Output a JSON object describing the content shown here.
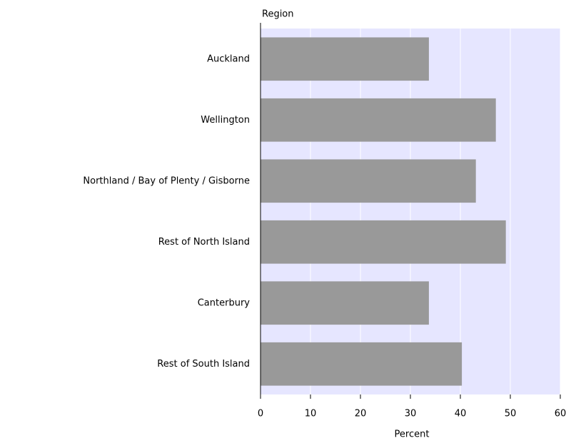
{
  "chart_data": {
    "type": "bar",
    "orientation": "horizontal",
    "y_label": "Region",
    "x_label": "Percent",
    "categories": [
      "Auckland",
      "Wellington",
      "Northland / Bay of Plenty / Gisborne",
      "Rest of North Island",
      "Canterbury",
      "Rest of South Island"
    ],
    "values": [
      33.7,
      47.1,
      43.1,
      49.1,
      33.7,
      40.3
    ],
    "color": "#999999",
    "plot_background": "#e6e6ff",
    "xlim": [
      0,
      60
    ],
    "xticks": [
      0,
      10,
      20,
      30,
      40,
      50,
      60
    ],
    "grid": true
  }
}
